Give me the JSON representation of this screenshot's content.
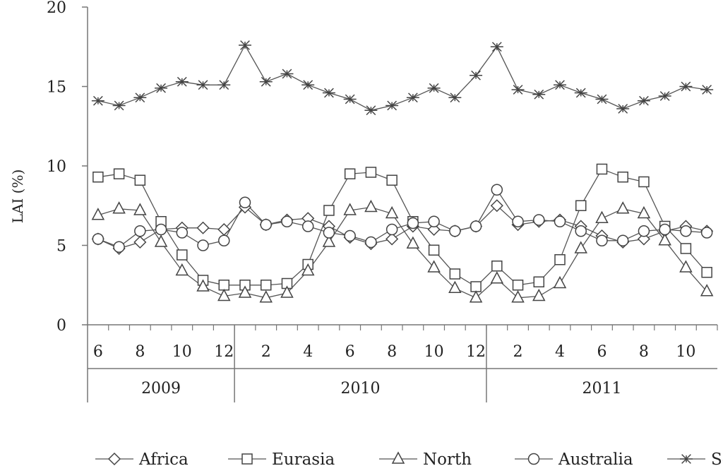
{
  "chart_data": {
    "type": "line",
    "title": "",
    "xlabel": "",
    "ylabel": "LAI (%)",
    "ylim": [
      0,
      20
    ],
    "yticks": [
      "0",
      "5",
      "10",
      "15",
      "20"
    ],
    "grid": false,
    "legend_position": "bottom",
    "x": [
      "2009-06",
      "2009-07",
      "2009-08",
      "2009-09",
      "2009-10",
      "2009-11",
      "2009-12",
      "2010-01",
      "2010-02",
      "2010-03",
      "2010-04",
      "2010-05",
      "2010-06",
      "2010-07",
      "2010-08",
      "2010-09",
      "2010-10",
      "2010-11",
      "2010-12",
      "2011-01",
      "2011-02",
      "2011-03",
      "2011-04",
      "2011-05",
      "2011-06",
      "2011-07",
      "2011-08",
      "2011-09",
      "2011-10",
      "2011-11"
    ],
    "month_tick_labels": [
      {
        "month": "2009-06",
        "label": "6"
      },
      {
        "month": "2009-08",
        "label": "8"
      },
      {
        "month": "2009-10",
        "label": "10"
      },
      {
        "month": "2009-12",
        "label": "12"
      },
      {
        "month": "2010-02",
        "label": "2"
      },
      {
        "month": "2010-04",
        "label": "4"
      },
      {
        "month": "2010-06",
        "label": "6"
      },
      {
        "month": "2010-08",
        "label": "8"
      },
      {
        "month": "2010-10",
        "label": "10"
      },
      {
        "month": "2010-12",
        "label": "12"
      },
      {
        "month": "2011-02",
        "label": "2"
      },
      {
        "month": "2011-04",
        "label": "4"
      },
      {
        "month": "2011-06",
        "label": "6"
      },
      {
        "month": "2011-08",
        "label": "8"
      },
      {
        "month": "2011-10",
        "label": "10"
      }
    ],
    "years": [
      {
        "label": "2009",
        "first_month": "2009-06",
        "last_month": "2009-12"
      },
      {
        "label": "2010",
        "first_month": "2010-01",
        "last_month": "2010-12"
      },
      {
        "label": "2011",
        "first_month": "2011-01",
        "last_month": "2011-11"
      }
    ],
    "series": [
      {
        "name": "Africa",
        "marker": "diamond",
        "values": [
          5.4,
          4.8,
          5.2,
          6.0,
          6.1,
          6.1,
          6.0,
          7.4,
          6.3,
          6.6,
          6.7,
          6.2,
          5.5,
          5.1,
          5.4,
          6.2,
          6.0,
          5.9,
          6.2,
          7.5,
          6.3,
          6.5,
          6.6,
          6.2,
          5.6,
          5.2,
          5.4,
          5.9,
          6.2,
          5.9
        ]
      },
      {
        "name": "Eurasia",
        "marker": "square",
        "values": [
          9.3,
          9.5,
          9.1,
          6.5,
          4.4,
          2.8,
          2.5,
          2.5,
          2.5,
          2.6,
          3.8,
          7.2,
          9.5,
          9.6,
          9.1,
          6.5,
          4.7,
          3.2,
          2.4,
          3.7,
          2.5,
          2.7,
          4.1,
          7.5,
          9.8,
          9.3,
          9.0,
          6.2,
          4.8,
          3.3
        ]
      },
      {
        "name": "North",
        "marker": "triangle",
        "values": [
          6.9,
          7.3,
          7.2,
          5.2,
          3.4,
          2.4,
          1.8,
          2.0,
          1.7,
          2.0,
          3.4,
          5.2,
          7.2,
          7.4,
          7.0,
          5.1,
          3.6,
          2.3,
          1.7,
          2.9,
          1.7,
          1.8,
          2.6,
          4.8,
          6.7,
          7.3,
          7.0,
          5.3,
          3.6,
          2.1
        ]
      },
      {
        "name": "Australia",
        "marker": "circle",
        "values": [
          5.4,
          4.9,
          5.9,
          6.0,
          5.8,
          5.0,
          5.3,
          7.7,
          6.3,
          6.5,
          6.2,
          5.8,
          5.6,
          5.2,
          6.0,
          6.4,
          6.5,
          5.9,
          6.2,
          8.5,
          6.5,
          6.6,
          6.5,
          5.9,
          5.3,
          5.3,
          5.9,
          6.0,
          5.9,
          5.8
        ]
      },
      {
        "name": "South",
        "marker": "asterisk",
        "values": [
          14.1,
          13.8,
          14.3,
          14.9,
          15.3,
          15.1,
          15.1,
          17.6,
          15.3,
          15.8,
          15.1,
          14.6,
          14.2,
          13.5,
          13.8,
          14.3,
          14.9,
          14.3,
          15.7,
          17.5,
          14.8,
          14.5,
          15.1,
          14.6,
          14.2,
          13.6,
          14.1,
          14.4,
          15.0,
          14.8
        ]
      }
    ]
  }
}
